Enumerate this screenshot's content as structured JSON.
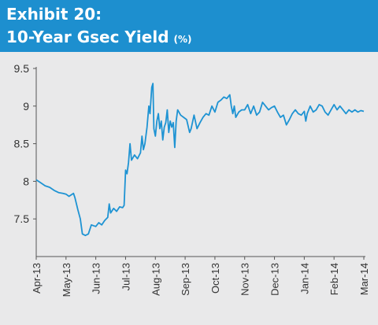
{
  "header": {
    "exhibit": "Exhibit 20:",
    "title": "10-Year Gsec Yield",
    "unit": "(%)"
  },
  "colors": {
    "header_bg": "#1d8fcf",
    "panel_bg": "#e9e9ea",
    "line": "#1e93d3",
    "axis": "#555555"
  },
  "chart_data": {
    "type": "line",
    "title": "10-Year Gsec Yield (%)",
    "ylim": [
      7.0,
      9.5
    ],
    "yticks": [
      "9.5",
      "9",
      "8.5",
      "8",
      "7.5"
    ],
    "ytick_values": [
      9.5,
      9.0,
      8.5,
      8.0,
      7.5
    ],
    "x_labels": [
      "Apr-13",
      "May-13",
      "Jun-13",
      "Jul-13",
      "Aug-13",
      "Sep-13",
      "Oct-13",
      "Nov-13",
      "Dec-13",
      "Jan-14",
      "Feb-14",
      "Mar-14"
    ],
    "grid": false,
    "series": [
      {
        "points": [
          [
            0.0,
            8.02
          ],
          [
            0.15,
            7.98
          ],
          [
            0.3,
            7.94
          ],
          [
            0.45,
            7.92
          ],
          [
            0.6,
            7.88
          ],
          [
            0.75,
            7.85
          ],
          [
            0.9,
            7.84
          ],
          [
            1.0,
            7.83
          ],
          [
            1.1,
            7.8
          ],
          [
            1.25,
            7.84
          ],
          [
            1.3,
            7.78
          ],
          [
            1.4,
            7.62
          ],
          [
            1.48,
            7.5
          ],
          [
            1.55,
            7.3
          ],
          [
            1.65,
            7.28
          ],
          [
            1.75,
            7.3
          ],
          [
            1.85,
            7.42
          ],
          [
            2.0,
            7.4
          ],
          [
            2.1,
            7.45
          ],
          [
            2.2,
            7.42
          ],
          [
            2.3,
            7.48
          ],
          [
            2.4,
            7.52
          ],
          [
            2.45,
            7.7
          ],
          [
            2.5,
            7.58
          ],
          [
            2.6,
            7.64
          ],
          [
            2.7,
            7.6
          ],
          [
            2.8,
            7.66
          ],
          [
            2.9,
            7.65
          ],
          [
            2.95,
            7.68
          ],
          [
            3.0,
            8.15
          ],
          [
            3.05,
            8.1
          ],
          [
            3.1,
            8.25
          ],
          [
            3.15,
            8.5
          ],
          [
            3.2,
            8.28
          ],
          [
            3.3,
            8.35
          ],
          [
            3.4,
            8.3
          ],
          [
            3.5,
            8.38
          ],
          [
            3.55,
            8.6
          ],
          [
            3.6,
            8.42
          ],
          [
            3.65,
            8.5
          ],
          [
            3.72,
            8.72
          ],
          [
            3.78,
            9.0
          ],
          [
            3.82,
            8.9
          ],
          [
            3.88,
            9.25
          ],
          [
            3.92,
            9.3
          ],
          [
            3.95,
            8.7
          ],
          [
            4.0,
            8.6
          ],
          [
            4.05,
            8.8
          ],
          [
            4.1,
            8.9
          ],
          [
            4.15,
            8.7
          ],
          [
            4.2,
            8.8
          ],
          [
            4.25,
            8.55
          ],
          [
            4.3,
            8.72
          ],
          [
            4.35,
            8.78
          ],
          [
            4.4,
            8.95
          ],
          [
            4.45,
            8.65
          ],
          [
            4.5,
            8.8
          ],
          [
            4.55,
            8.72
          ],
          [
            4.6,
            8.78
          ],
          [
            4.65,
            8.45
          ],
          [
            4.7,
            8.8
          ],
          [
            4.75,
            8.95
          ],
          [
            4.85,
            8.88
          ],
          [
            4.95,
            8.85
          ],
          [
            5.05,
            8.82
          ],
          [
            5.15,
            8.65
          ],
          [
            5.2,
            8.7
          ],
          [
            5.3,
            8.88
          ],
          [
            5.4,
            8.7
          ],
          [
            5.5,
            8.78
          ],
          [
            5.6,
            8.85
          ],
          [
            5.7,
            8.9
          ],
          [
            5.8,
            8.88
          ],
          [
            5.9,
            9.0
          ],
          [
            6.0,
            8.92
          ],
          [
            6.1,
            9.05
          ],
          [
            6.2,
            9.08
          ],
          [
            6.3,
            9.12
          ],
          [
            6.4,
            9.1
          ],
          [
            6.5,
            9.15
          ],
          [
            6.55,
            9.0
          ],
          [
            6.6,
            8.9
          ],
          [
            6.65,
            9.0
          ],
          [
            6.7,
            8.85
          ],
          [
            6.8,
            8.92
          ],
          [
            6.9,
            8.95
          ],
          [
            7.0,
            8.95
          ],
          [
            7.1,
            9.02
          ],
          [
            7.2,
            8.9
          ],
          [
            7.3,
            9.0
          ],
          [
            7.4,
            8.88
          ],
          [
            7.5,
            8.92
          ],
          [
            7.6,
            9.05
          ],
          [
            7.7,
            9.0
          ],
          [
            7.8,
            8.95
          ],
          [
            7.9,
            8.98
          ],
          [
            8.0,
            9.0
          ],
          [
            8.1,
            8.92
          ],
          [
            8.2,
            8.85
          ],
          [
            8.3,
            8.88
          ],
          [
            8.4,
            8.75
          ],
          [
            8.5,
            8.82
          ],
          [
            8.6,
            8.9
          ],
          [
            8.7,
            8.95
          ],
          [
            8.8,
            8.9
          ],
          [
            8.9,
            8.88
          ],
          [
            9.0,
            8.93
          ],
          [
            9.05,
            8.8
          ],
          [
            9.1,
            8.9
          ],
          [
            9.2,
            9.0
          ],
          [
            9.3,
            8.92
          ],
          [
            9.4,
            8.95
          ],
          [
            9.5,
            9.02
          ],
          [
            9.6,
            9.0
          ],
          [
            9.7,
            8.92
          ],
          [
            9.8,
            8.88
          ],
          [
            9.9,
            8.95
          ],
          [
            10.0,
            9.02
          ],
          [
            10.1,
            8.95
          ],
          [
            10.2,
            9.0
          ],
          [
            10.3,
            8.95
          ],
          [
            10.4,
            8.9
          ],
          [
            10.5,
            8.95
          ],
          [
            10.6,
            8.92
          ],
          [
            10.7,
            8.95
          ],
          [
            10.8,
            8.92
          ],
          [
            10.9,
            8.94
          ],
          [
            11.0,
            8.93
          ]
        ]
      }
    ]
  }
}
